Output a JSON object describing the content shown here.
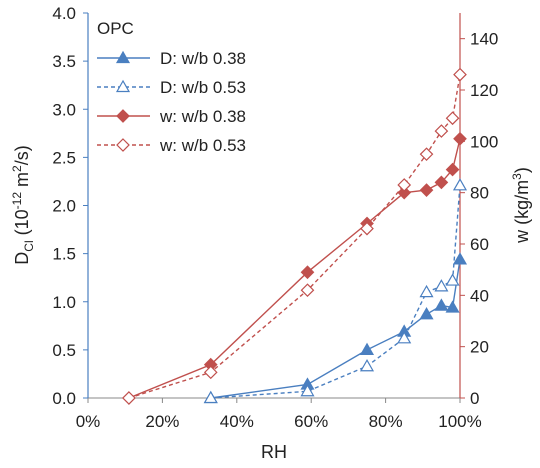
{
  "chart_data": {
    "type": "line",
    "legend_title": "OPC",
    "legend_position": "top-left",
    "grid": false,
    "xlabel": "RH",
    "ylabel_left": {
      "main": "D",
      "sub": "Cl",
      "rest": " (10",
      "sup": "-12",
      "rest2": " m",
      "sup2": "2",
      "rest3": "/s)"
    },
    "ylabel_right": {
      "main": "w (kg/m",
      "sup": "3",
      "rest": ")"
    },
    "xlim": [
      0,
      1
    ],
    "ylim_left": [
      0,
      4
    ],
    "ylim_right": [
      0,
      150
    ],
    "x_ticks": [
      "0%",
      "20%",
      "40%",
      "60%",
      "80%",
      "100%"
    ],
    "y_left_ticks": [
      "0.0",
      "0.5",
      "1.0",
      "1.5",
      "2.0",
      "2.5",
      "3.0",
      "3.5",
      "4.0"
    ],
    "y_right_ticks": [
      "0",
      "20",
      "40",
      "60",
      "80",
      "100",
      "120",
      "140"
    ],
    "colors": {
      "blue": "#4a7fc0",
      "red": "#c0504d"
    },
    "series": [
      {
        "name": "D: w/b 0.38",
        "axis": "left",
        "color": "#4a7fc0",
        "dashed": false,
        "marker": "triangle-filled",
        "x": [
          0.33,
          0.59,
          0.75,
          0.85,
          0.91,
          0.95,
          0.98,
          1.0
        ],
        "y": [
          0.0,
          0.14,
          0.5,
          0.69,
          0.87,
          0.96,
          0.94,
          1.44
        ]
      },
      {
        "name": "D: w/b 0.53",
        "axis": "left",
        "color": "#4a7fc0",
        "dashed": true,
        "marker": "triangle-open",
        "x": [
          0.33,
          0.59,
          0.75,
          0.85,
          0.91,
          0.95,
          0.98,
          1.0
        ],
        "y": [
          0.0,
          0.07,
          0.33,
          0.62,
          1.1,
          1.16,
          1.22,
          2.21
        ]
      },
      {
        "name": "w: w/b 0.38",
        "axis": "right",
        "color": "#c0504d",
        "dashed": false,
        "marker": "diamond-filled",
        "x": [
          0.11,
          0.33,
          0.59,
          0.75,
          0.85,
          0.91,
          0.95,
          0.98,
          1.0
        ],
        "y": [
          0,
          13,
          49,
          68,
          80,
          81,
          84,
          89,
          101
        ]
      },
      {
        "name": "w: w/b 0.53",
        "axis": "right",
        "color": "#c0504d",
        "dashed": true,
        "marker": "diamond-open",
        "x": [
          0.11,
          0.33,
          0.59,
          0.75,
          0.85,
          0.91,
          0.95,
          0.98,
          1.0
        ],
        "y": [
          0,
          10,
          42,
          66,
          83,
          95,
          104,
          109,
          126
        ]
      }
    ]
  }
}
